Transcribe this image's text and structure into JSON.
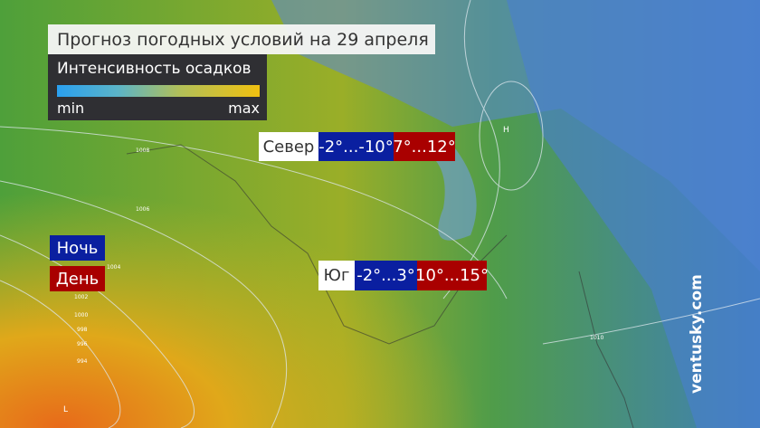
{
  "title": "Прогноз погодных условий на 29 апреля",
  "legend": {
    "title": "Интенсивность осадков",
    "min": "min",
    "max": "max",
    "gradient": [
      "#2aa0ef",
      "#f0c010"
    ]
  },
  "regions": [
    {
      "name": "Север",
      "night": "-2°...-10°",
      "day": "7°...12°"
    },
    {
      "name": "Юг",
      "night": "-2°...3°",
      "day": "10°...15°"
    }
  ],
  "key": {
    "night": "Ночь",
    "day": "День"
  },
  "colors": {
    "night": "#0a1fa0",
    "day": "#a90000"
  },
  "isobars": [
    "1008",
    "1006",
    "1004",
    "1002",
    "1000",
    "998",
    "996",
    "994",
    "1010"
  ],
  "pressure_centers": {
    "low": "L",
    "high": "H"
  },
  "brand": "ventusky.com"
}
